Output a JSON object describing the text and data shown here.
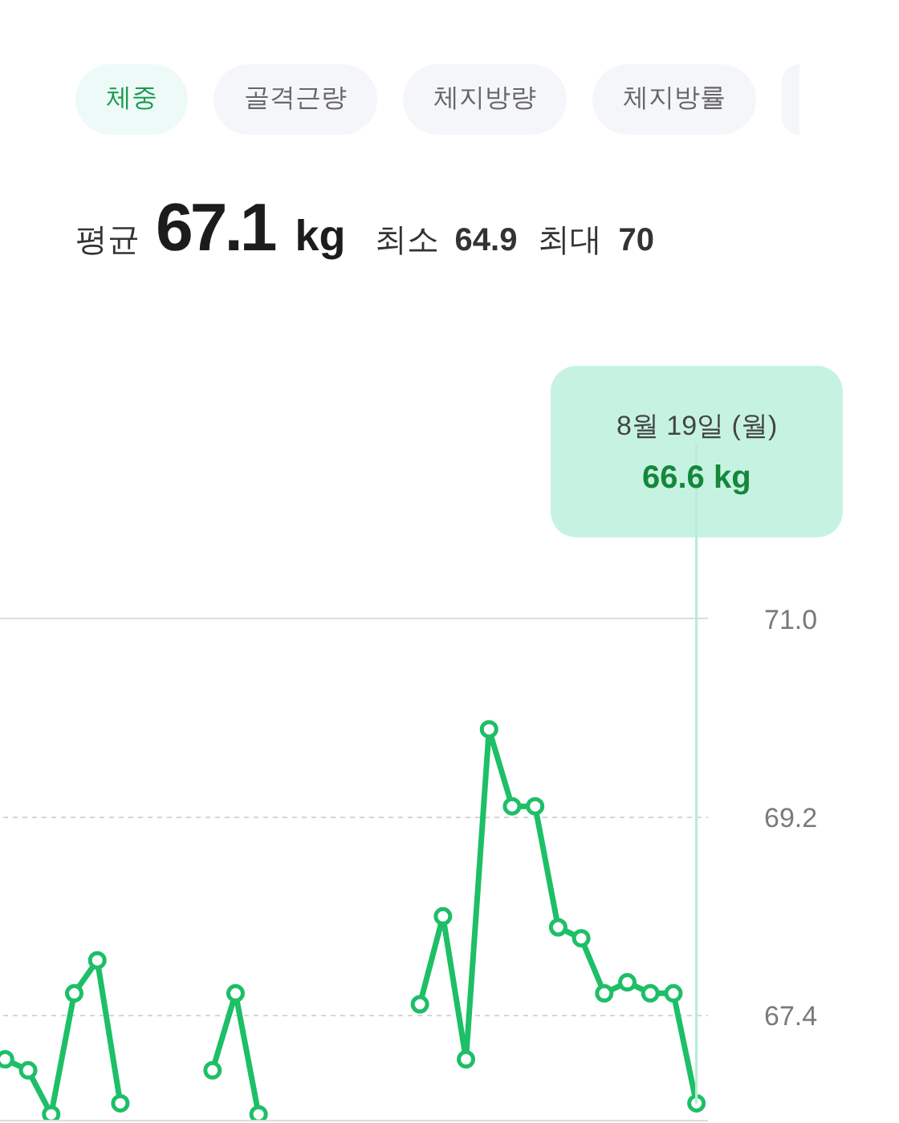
{
  "chart_data": {
    "type": "line",
    "subtitle": "평균 67.1 kg 최소 64.9 최대 70",
    "annotations": [
      "체중",
      "골격근량",
      "체지방량",
      "체지방률",
      "8월 19일 (월)",
      "66.6 kg"
    ],
    "categories": [
      null,
      null,
      null,
      null,
      null,
      null,
      null,
      null,
      null,
      null,
      null,
      null,
      null,
      null,
      null,
      null,
      null,
      null,
      null,
      null,
      null,
      null,
      null,
      null,
      null,
      null,
      null,
      null,
      null,
      null,
      null
    ],
    "series": [
      {
        "color": "#1dbf67",
        "values": [
          67.0,
          66.9,
          66.5,
          67.6,
          67.9,
          66.6,
          null,
          null,
          null,
          null,
          null,
          null,
          null,
          null,
          null,
          null,
          null,
          null,
          null,
          null,
          null,
          null,
          null,
          null,
          null,
          null,
          null,
          null,
          null,
          null,
          null
        ]
      },
      {
        "color": "#1dbf67",
        "values": [
          null,
          null,
          null,
          null,
          null,
          null,
          null,
          null,
          null,
          66.9,
          67.6,
          66.5,
          null,
          null,
          null,
          null,
          null,
          null,
          null,
          null,
          null,
          null,
          null,
          null,
          null,
          null,
          null,
          null,
          null,
          null,
          null
        ]
      },
      {
        "color": "#1dbf67",
        "values": [
          null,
          null,
          null,
          null,
          null,
          null,
          null,
          null,
          null,
          null,
          null,
          null,
          null,
          null,
          null,
          null,
          null,
          null,
          67.5,
          68.3,
          67.0,
          70.0,
          69.3,
          69.3,
          68.2,
          68.1,
          67.6,
          67.7,
          67.6,
          67.6,
          66.6
        ]
      }
    ],
    "ylim": [
      66.45,
      71.0
    ],
    "yticks": [
      {
        "value": 71,
        "label": "71.0"
      },
      69.2,
      67.4
    ],
    "grid": "y",
    "tick_labels": "y",
    "marker": "circle",
    "line_style": "solid"
  }
}
